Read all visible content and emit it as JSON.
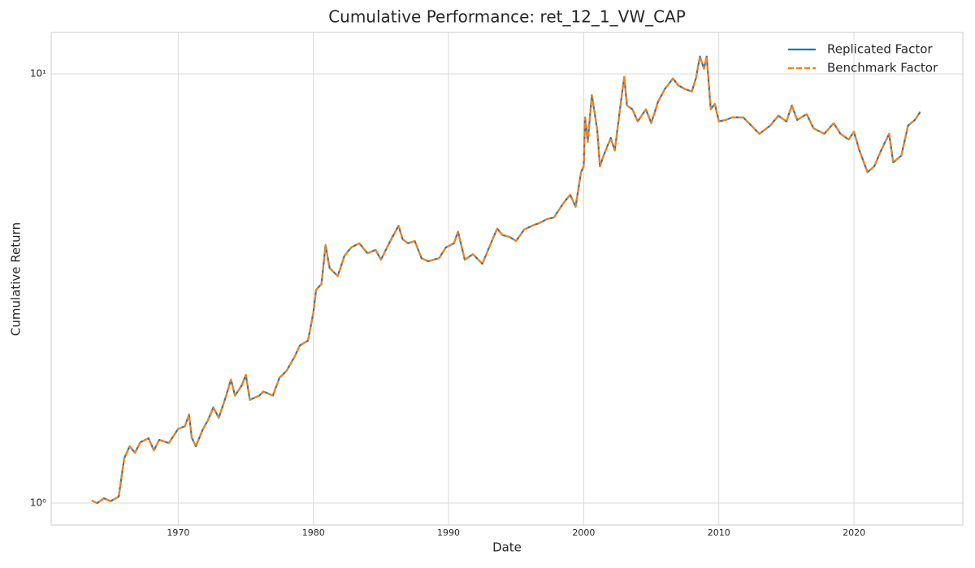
{
  "chart_data": {
    "type": "line",
    "title": "Cumulative Performance: ret_12_1_VW_CAP",
    "xlabel": "Date",
    "ylabel": "Cumulative Return",
    "x": [
      1963.6,
      1964.0,
      1964.5,
      1965.0,
      1965.6,
      1966.0,
      1966.4,
      1966.8,
      1967.2,
      1967.8,
      1968.2,
      1968.6,
      1969.3,
      1970.0,
      1970.5,
      1970.8,
      1971.0,
      1971.3,
      1971.8,
      1972.2,
      1972.6,
      1973.0,
      1973.5,
      1973.9,
      1974.2,
      1974.7,
      1975.0,
      1975.3,
      1976.0,
      1976.3,
      1977.0,
      1977.5,
      1978.0,
      1978.6,
      1979.0,
      1979.6,
      1980.0,
      1980.2,
      1980.6,
      1980.9,
      1981.2,
      1981.8,
      1982.3,
      1982.8,
      1983.4,
      1984.0,
      1984.6,
      1985.0,
      1985.6,
      1986.3,
      1986.6,
      1987.0,
      1987.5,
      1988.0,
      1988.5,
      1989.3,
      1989.8,
      1990.4,
      1990.7,
      1991.2,
      1991.8,
      1992.5,
      1993.0,
      1993.6,
      1994.0,
      1994.5,
      1995.0,
      1995.6,
      1996.2,
      1996.7,
      1997.3,
      1997.8,
      1998.5,
      1999.0,
      1999.4,
      1999.8,
      2000.0,
      2000.1,
      2000.3,
      2000.6,
      2001.0,
      2001.2,
      2001.5,
      2002.0,
      2002.3,
      2002.8,
      2003.0,
      2003.2,
      2003.6,
      2004.0,
      2004.6,
      2005.0,
      2005.5,
      2006.0,
      2006.6,
      2007.0,
      2007.5,
      2008.0,
      2008.3,
      2008.6,
      2008.9,
      2009.1,
      2009.4,
      2009.7,
      2010.0,
      2010.5,
      2011.0,
      2011.8,
      2012.4,
      2013.0,
      2013.8,
      2014.4,
      2015.0,
      2015.4,
      2015.8,
      2016.5,
      2017.0,
      2017.8,
      2018.5,
      2019.0,
      2019.6,
      2020.0,
      2020.4,
      2021.0,
      2021.5,
      2022.0,
      2022.6,
      2022.9,
      2023.5,
      2024.0,
      2024.5,
      2024.9
    ],
    "series": [
      {
        "name": "Replicated Factor",
        "color": "#1f77b4",
        "linestyle": "solid",
        "values": [
          1.013,
          1.0,
          1.026,
          1.01,
          1.035,
          1.27,
          1.356,
          1.31,
          1.386,
          1.416,
          1.327,
          1.404,
          1.38,
          1.49,
          1.51,
          1.61,
          1.42,
          1.356,
          1.48,
          1.56,
          1.67,
          1.58,
          1.76,
          1.94,
          1.78,
          1.88,
          1.99,
          1.74,
          1.78,
          1.82,
          1.78,
          1.96,
          2.03,
          2.19,
          2.33,
          2.39,
          2.78,
          3.14,
          3.24,
          3.99,
          3.53,
          3.38,
          3.77,
          3.94,
          4.03,
          3.82,
          3.89,
          3.69,
          4.03,
          4.43,
          4.12,
          4.03,
          4.08,
          3.72,
          3.66,
          3.72,
          3.94,
          4.03,
          4.29,
          3.69,
          3.8,
          3.61,
          3.94,
          4.36,
          4.21,
          4.17,
          4.08,
          4.34,
          4.43,
          4.49,
          4.59,
          4.63,
          5.0,
          5.23,
          4.9,
          5.9,
          6.09,
          7.92,
          6.94,
          8.93,
          7.42,
          6.09,
          6.49,
          7.09,
          6.63,
          8.84,
          9.84,
          8.44,
          8.27,
          7.75,
          8.27,
          7.68,
          8.61,
          9.22,
          9.76,
          9.4,
          9.22,
          9.1,
          9.76,
          10.98,
          10.28,
          10.98,
          8.27,
          8.52,
          7.75,
          7.81,
          7.92,
          7.92,
          7.58,
          7.25,
          7.58,
          7.99,
          7.75,
          8.44,
          7.81,
          8.06,
          7.47,
          7.25,
          7.68,
          7.25,
          7.03,
          7.33,
          6.63,
          5.9,
          6.09,
          6.63,
          7.25,
          6.22,
          6.45,
          7.58,
          7.81,
          8.16
        ]
      },
      {
        "name": "Benchmark Factor",
        "color": "#ff7f0e",
        "linestyle": "dashed",
        "values": [
          1.013,
          1.0,
          1.026,
          1.01,
          1.035,
          1.27,
          1.356,
          1.31,
          1.386,
          1.416,
          1.327,
          1.404,
          1.38,
          1.49,
          1.51,
          1.61,
          1.42,
          1.356,
          1.48,
          1.56,
          1.67,
          1.58,
          1.76,
          1.94,
          1.78,
          1.88,
          1.99,
          1.74,
          1.78,
          1.82,
          1.78,
          1.96,
          2.03,
          2.19,
          2.33,
          2.39,
          2.78,
          3.14,
          3.24,
          3.99,
          3.53,
          3.38,
          3.77,
          3.94,
          4.03,
          3.82,
          3.89,
          3.69,
          4.03,
          4.43,
          4.12,
          4.03,
          4.08,
          3.72,
          3.66,
          3.72,
          3.94,
          4.03,
          4.29,
          3.69,
          3.8,
          3.61,
          3.94,
          4.36,
          4.21,
          4.17,
          4.08,
          4.34,
          4.43,
          4.49,
          4.59,
          4.63,
          5.0,
          5.23,
          4.9,
          5.9,
          6.09,
          7.92,
          6.94,
          8.93,
          7.42,
          6.09,
          6.49,
          7.09,
          6.63,
          8.84,
          9.84,
          8.44,
          8.27,
          7.75,
          8.27,
          7.68,
          8.61,
          9.22,
          9.76,
          9.4,
          9.22,
          9.1,
          9.76,
          10.98,
          10.28,
          10.98,
          8.27,
          8.52,
          7.75,
          7.81,
          7.92,
          7.92,
          7.58,
          7.25,
          7.58,
          7.99,
          7.75,
          8.44,
          7.81,
          8.06,
          7.47,
          7.25,
          7.68,
          7.25,
          7.03,
          7.33,
          6.63,
          5.9,
          6.09,
          6.63,
          7.25,
          6.22,
          6.45,
          7.58,
          7.81,
          8.16
        ]
      }
    ],
    "xlim": [
      1960.6,
      2028.05
    ],
    "xticks": [
      1970,
      1980,
      1990,
      2000,
      2010,
      2020
    ],
    "ylim": [
      0.889,
      12.49
    ],
    "yticks": [
      {
        "value": 1,
        "label": "10⁰"
      },
      {
        "value": 10,
        "label": "10¹"
      }
    ],
    "yscale": "log",
    "grid": true,
    "legend": "upper right"
  }
}
